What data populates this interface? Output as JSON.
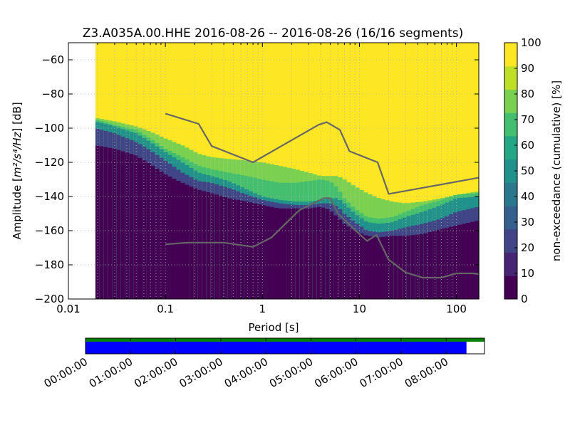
{
  "chart_data": {
    "type": "heatmap",
    "title": "Z3.A035A.00.HHE   2016-08-26 -- 2016-08-26  (16/16 segments)",
    "xlabel": "Period [s]",
    "ylabel_prefix": "Amplitude [",
    "ylabel_math": "m²/s⁴/Hz",
    "ylabel_suffix": "] [dB]",
    "x_scale": "log",
    "xlim": [
      0.01,
      170
    ],
    "ylim": [
      -200,
      -50
    ],
    "x_ticks": [
      {
        "value": 0.01,
        "label": "0.01"
      },
      {
        "value": 0.1,
        "label": "0.1"
      },
      {
        "value": 1,
        "label": "1"
      },
      {
        "value": 10,
        "label": "10"
      },
      {
        "value": 100,
        "label": "100"
      }
    ],
    "y_ticks": [
      {
        "value": -60,
        "label": "−60"
      },
      {
        "value": -80,
        "label": "−80"
      },
      {
        "value": -100,
        "label": "−100"
      },
      {
        "value": -120,
        "label": "−120"
      },
      {
        "value": -140,
        "label": "−140"
      },
      {
        "value": -160,
        "label": "−160"
      },
      {
        "value": -180,
        "label": "−180"
      },
      {
        "value": -200,
        "label": "−200"
      }
    ],
    "grid": true,
    "data_start_period": 0.019,
    "colorbar": {
      "label": "non-exceedance (cumulative) [%]",
      "min": 0,
      "max": 100,
      "ticks": [
        {
          "value": 0,
          "label": "0"
        },
        {
          "value": 10,
          "label": "10"
        },
        {
          "value": 20,
          "label": "20"
        },
        {
          "value": 30,
          "label": "30"
        },
        {
          "value": 40,
          "label": "40"
        },
        {
          "value": 50,
          "label": "50"
        },
        {
          "value": 60,
          "label": "60"
        },
        {
          "value": 70,
          "label": "70"
        },
        {
          "value": 80,
          "label": "80"
        },
        {
          "value": 90,
          "label": "90"
        },
        {
          "value": 100,
          "label": "100"
        }
      ],
      "colors": [
        "#440154",
        "#482475",
        "#414487",
        "#355f8d",
        "#2a788e",
        "#21918c",
        "#22a884",
        "#44bf70",
        "#7ad151",
        "#bddf26",
        "#fde725"
      ]
    },
    "percentile_bands": {
      "period": [
        0.019,
        0.03,
        0.05,
        0.07,
        0.1,
        0.15,
        0.22,
        0.3,
        0.45,
        0.7,
        1.0,
        1.5,
        2.2,
        3.0,
        4.0,
        5.0,
        6.0,
        7.0,
        9.0,
        12.0,
        16.0,
        22.0,
        30.0,
        45.0,
        70.0,
        100.0,
        170.0
      ],
      "p5": [
        -110,
        -112,
        -116,
        -121,
        -127,
        -132,
        -136,
        -138,
        -141,
        -143,
        -145,
        -147,
        -147,
        -147,
        -146,
        -148,
        -152,
        -156,
        -160,
        -163,
        -164,
        -163,
        -163,
        -162,
        -159,
        -157,
        -154
      ],
      "p20": [
        -100,
        -103,
        -108,
        -113,
        -119,
        -126,
        -131,
        -132,
        -135,
        -139,
        -142,
        -144,
        -145,
        -145,
        -144,
        -144,
        -146,
        -150,
        -155,
        -160,
        -161,
        -160,
        -158,
        -156,
        -153,
        -149,
        -146
      ],
      "p60": [
        -96,
        -99,
        -103,
        -108,
        -114,
        -120,
        -126,
        -128,
        -131,
        -136,
        -140,
        -142,
        -143,
        -143,
        -142,
        -141,
        -141,
        -144,
        -150,
        -155,
        -156,
        -155,
        -152,
        -149,
        -145,
        -141,
        -140
      ],
      "p80": [
        -95,
        -98,
        -101,
        -106,
        -112,
        -117,
        -122,
        -124,
        -126,
        -128,
        -130,
        -132,
        -132,
        -131,
        -130,
        -131,
        -135,
        -141,
        -147,
        -152,
        -153,
        -152,
        -149,
        -145,
        -142,
        -139,
        -138
      ],
      "p90": [
        -94,
        -96,
        -99,
        -102,
        -106,
        -110,
        -115,
        -117,
        -118,
        -119,
        -120,
        -122,
        -124,
        -126,
        -128,
        -128,
        -128,
        -130,
        -134,
        -138,
        -141,
        -143,
        -144,
        -143,
        -141,
        -139,
        -137
      ]
    },
    "series": [
      {
        "x": [
          0.1,
          0.22,
          0.3,
          0.8,
          3.8,
          4.6,
          6.3,
          7.9,
          15.4,
          20,
          170
        ],
        "y": [
          -91.5,
          -97.5,
          -110.5,
          -120,
          -98,
          -96.5,
          -101,
          -113.5,
          -120,
          -138.5,
          -129
        ],
        "color": "#666666"
      },
      {
        "x": [
          0.1,
          0.17,
          0.4,
          0.8,
          1.24,
          2.4,
          4.3,
          5,
          6,
          10,
          12,
          15,
          20,
          30,
          45,
          70,
          100,
          150,
          170
        ],
        "y": [
          -168,
          -167,
          -167,
          -169.5,
          -164,
          -148,
          -141,
          -141,
          -150,
          -162,
          -166,
          -162.5,
          -177,
          -184.5,
          -187.5,
          -187.5,
          -185,
          -185,
          -185.5
        ],
        "color": "#666666"
      }
    ],
    "coverage_bar": {
      "time_ticks": [
        "00:00:00",
        "01:00:00",
        "02:00:00",
        "03:00:00",
        "04:00:00",
        "05:00:00",
        "06:00:00",
        "07:00:00",
        "08:00:00"
      ],
      "start_hour": 0,
      "end_hour": 8.85,
      "rows": [
        {
          "color": "#008000",
          "start_hour": 0,
          "end_hour": 8.85
        },
        {
          "color": "#0000ff",
          "start_hour": 0,
          "end_hour": 8.45
        }
      ]
    }
  }
}
